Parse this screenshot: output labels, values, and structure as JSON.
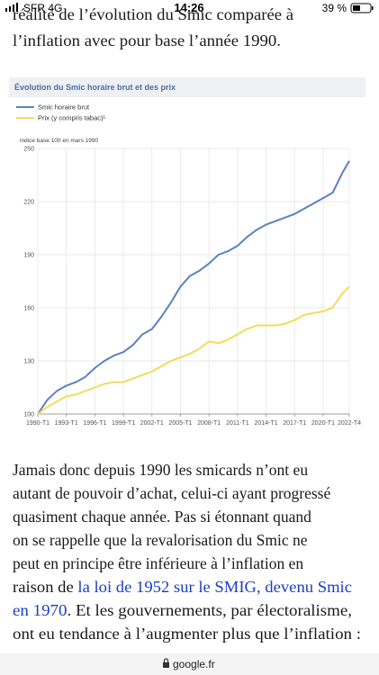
{
  "status": {
    "carrier": "SFR 4G",
    "time": "14:26",
    "battery": "39 %"
  },
  "article": {
    "top_lines": [
      "réalité de l’évolution du Smic comparée à",
      "l’inflation avec pour base l’année 1990."
    ],
    "lines": [
      "Jamais donc depuis 1990 les smicards n’ont eu",
      "autant de pouvoir d’achat, celui-ci ayant progressé",
      "quasiment chaque année. Pas si étonnant quand",
      "on se rappelle que la revalorisation du Smic ne",
      "peut en principe être inférieure à l’inflation en"
    ],
    "line6_start": "raison de ",
    "link_1": "la loi de 1952 sur le SMIG, devenu Smic",
    "link_2": "en 1970",
    "line7_end": ". Et les gouvernements, par électoralisme,",
    "line8": "ont eu tendance à l’augmenter plus que l’inflation :"
  },
  "url": "google.fr",
  "chart_data": {
    "type": "line",
    "title": "Évolution du Smic horaire brut et des prix",
    "axis_note": "indice base 100 en mars 1990",
    "x": [
      1990,
      1991,
      1992,
      1993,
      1994,
      1995,
      1996,
      1997,
      1998,
      1999,
      2000,
      2001,
      2002,
      2003,
      2004,
      2005,
      2006,
      2007,
      2008,
      2009,
      2010,
      2011,
      2012,
      2013,
      2014,
      2015,
      2016,
      2017,
      2018,
      2019,
      2020,
      2021,
      2022,
      2022.75
    ],
    "series": [
      {
        "name": "Smic horaire brut",
        "color": "#5b82bf",
        "values": [
          100,
          108,
          113,
          116,
          118,
          121,
          126,
          130,
          133,
          135,
          139,
          145,
          148,
          155,
          163,
          172,
          178,
          181,
          185,
          190,
          192,
          195,
          200,
          204,
          207,
          209,
          211,
          213,
          216,
          219,
          222,
          225,
          236,
          243
        ]
      },
      {
        "name": "Prix (y compris tabac)¹",
        "color": "#f2dc5a",
        "values": [
          100,
          104,
          107,
          110,
          111,
          113,
          115,
          117,
          118,
          118,
          120,
          122,
          124,
          127,
          130,
          132,
          134,
          137,
          141,
          140,
          142,
          145,
          148,
          150,
          150,
          150,
          151,
          153,
          156,
          157,
          158,
          160,
          168,
          172
        ]
      }
    ],
    "xlim": [
      1990,
      2022.75
    ],
    "xticks": [
      {
        "value": 1990,
        "label": "1990-T1"
      },
      {
        "value": 1993,
        "label": "1993-T1"
      },
      {
        "value": 1996,
        "label": "1996-T1"
      },
      {
        "value": 1999,
        "label": "1999-T1"
      },
      {
        "value": 2002,
        "label": "2002-T1"
      },
      {
        "value": 2005,
        "label": "2005-T1"
      },
      {
        "value": 2008,
        "label": "2008-T1"
      },
      {
        "value": 2011,
        "label": "2011-T1"
      },
      {
        "value": 2014,
        "label": "2014-T1"
      },
      {
        "value": 2017,
        "label": "2017-T1"
      },
      {
        "value": 2020,
        "label": "2020-T1"
      },
      {
        "value": 2022.75,
        "label": "2022-T4"
      }
    ],
    "ylim": [
      100,
      250
    ],
    "yticks": [
      100,
      130,
      160,
      190,
      220,
      250
    ],
    "grid": true
  }
}
